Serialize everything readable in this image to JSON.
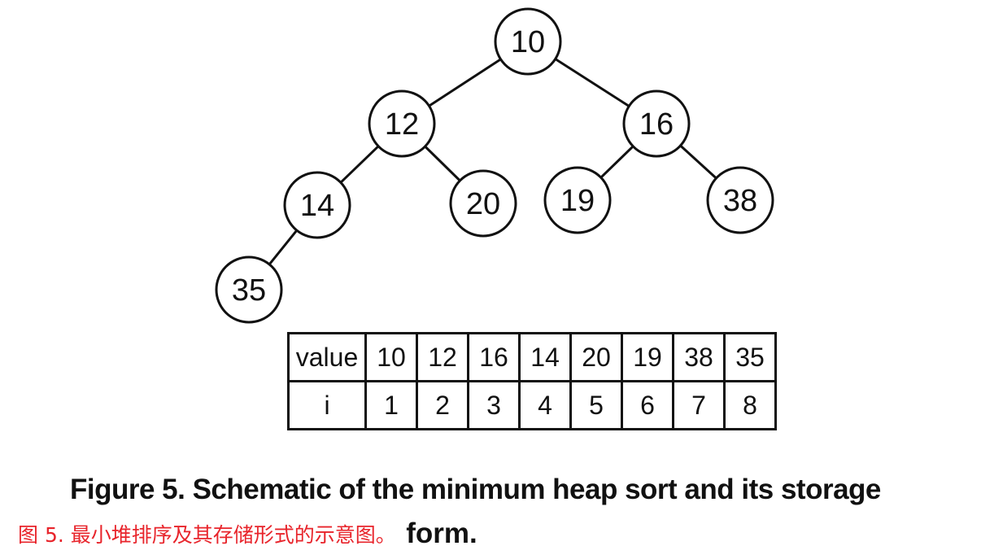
{
  "heap": {
    "nodes": [
      "10",
      "12",
      "16",
      "14",
      "20",
      "19",
      "38",
      "35"
    ],
    "edges": [
      [
        0,
        1
      ],
      [
        0,
        2
      ],
      [
        1,
        3
      ],
      [
        1,
        4
      ],
      [
        2,
        5
      ],
      [
        2,
        6
      ],
      [
        3,
        7
      ]
    ]
  },
  "table": {
    "value_label": "value",
    "index_label": "i",
    "values": [
      "10",
      "12",
      "16",
      "14",
      "20",
      "19",
      "38",
      "35"
    ],
    "indices": [
      "1",
      "2",
      "3",
      "4",
      "5",
      "6",
      "7",
      "8"
    ]
  },
  "caption": {
    "en_line1": "Figure 5. Schematic of the minimum heap sort and its storage",
    "zh": "图 5. 最小堆排序及其存储形式的示意图。",
    "en_line2": "form."
  },
  "colors": {
    "caption_zh": "#e8242b",
    "ink": "#111111"
  }
}
